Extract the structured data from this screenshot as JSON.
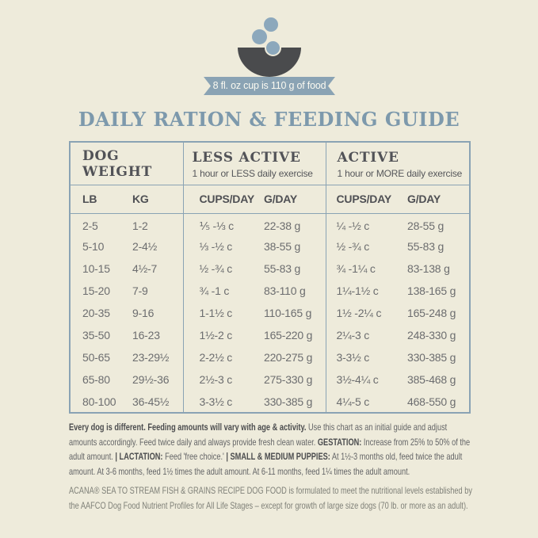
{
  "banner": {
    "text": "8 fl. oz cup is 110 g of food"
  },
  "title": "DAILY RATION & FEEDING GUIDE",
  "table": {
    "groups": [
      {
        "label": "DOG WEIGHT",
        "sub": ""
      },
      {
        "label": "LESS ACTIVE",
        "sub": "1 hour or LESS daily exercise"
      },
      {
        "label": "ACTIVE",
        "sub": "1 hour or MORE daily exercise"
      }
    ],
    "columns": [
      "LB",
      "KG",
      "CUPS/DAY",
      "G/DAY",
      "CUPS/DAY",
      "G/DAY"
    ],
    "rows": [
      [
        "2-5",
        "1-2",
        "⅕ -⅓ c",
        "22-38 g",
        "¼ -½ c",
        "28-55 g"
      ],
      [
        "5-10",
        "2-4½",
        "⅓ -½ c",
        "38-55 g",
        "½ -¾ c",
        "55-83 g"
      ],
      [
        "10-15",
        "4½-7",
        "½ -¾ c",
        "55-83 g",
        "¾ -1¼ c",
        "83-138 g"
      ],
      [
        "15-20",
        "7-9",
        "¾ -1 c",
        "83-110 g",
        "1¼-1½ c",
        "138-165 g"
      ],
      [
        "20-35",
        "9-16",
        "1-1½ c",
        "110-165 g",
        "1½ -2¼ c",
        "165-248 g"
      ],
      [
        "35-50",
        "16-23",
        "1½-2 c",
        "165-220 g",
        "2¼-3 c",
        "248-330 g"
      ],
      [
        "50-65",
        "23-29½",
        "2-2½ c",
        "220-275 g",
        "3-3½ c",
        "330-385 g"
      ],
      [
        "65-80",
        "29½-36",
        "2½-3 c",
        "275-330 g",
        "3½-4¼ c",
        "385-468 g"
      ],
      [
        "80-100",
        "36-45½",
        "3-3½ c",
        "330-385 g",
        "4¼-5 c",
        "468-550 g"
      ]
    ]
  },
  "notes": {
    "paragraph1": [
      {
        "t": "Every dog is different. Feeding amounts will vary with age & activity.",
        "b": true
      },
      {
        "t": " Use this chart as an initial guide and adjust amounts accordingly. Feed twice daily and always provide fresh clean water. ",
        "b": false
      },
      {
        "t": "GESTATION:",
        "b": true
      },
      {
        "t": " Increase from 25% to 50% of the adult amount. ",
        "b": false
      },
      {
        "t": "| LACTATION:",
        "b": true
      },
      {
        "t": " Feed 'free choice.' ",
        "b": false
      },
      {
        "t": "| SMALL & MEDIUM PUPPIES:",
        "b": true
      },
      {
        "t": " At 1½-3 months old, feed twice the adult amount. At 3-6 months, feed 1½ times the adult amount. At 6-11 months, feed 1¼ times the adult amount.",
        "b": false
      }
    ],
    "paragraph2": "ACANA® SEA TO STREAM FISH & GRAINS RECIPE DOG FOOD is formulated to meet the nutritional levels established by the AAFCO Dog Food Nutrient Profiles for All Life Stages – except for growth of large size dogs (70 lb. or more as an adult)."
  },
  "colors": {
    "background": "#eeebdb",
    "accent_blue": "#8aa3b4",
    "title_blue": "#7d99ac",
    "bowl_dark": "#4a4b4d",
    "kibble_blue": "#8ca8bc",
    "header_text": "#515257",
    "body_text": "#6c6d6f"
  }
}
